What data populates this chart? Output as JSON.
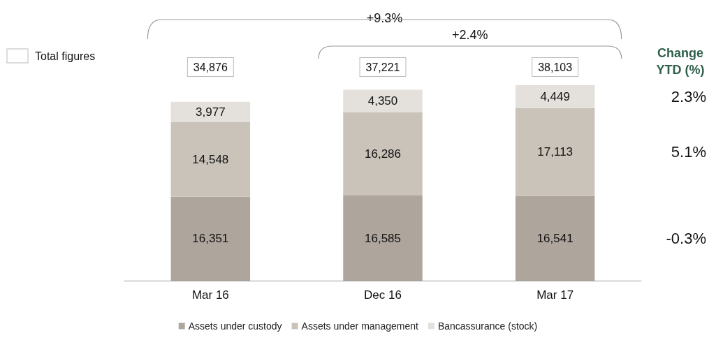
{
  "chart_data": {
    "type": "bar",
    "stacked": true,
    "categories": [
      "Mar 16",
      "Dec 16",
      "Mar 17"
    ],
    "series": [
      {
        "name": "Assets under custody",
        "color": "#aea59c",
        "values": [
          16351,
          16585,
          16541
        ],
        "value_labels": [
          "16,351",
          "16,585",
          "16,541"
        ]
      },
      {
        "name": "Assets under management",
        "color": "#c9c3b9",
        "values": [
          14548,
          16286,
          17113
        ],
        "value_labels": [
          "14,548",
          "16,286",
          "17,113"
        ]
      },
      {
        "name": "Bancassurance (stock)",
        "color": "#e4e1dc",
        "values": [
          3977,
          4350,
          4449
        ],
        "value_labels": [
          "3,977",
          "4,350",
          "4,449"
        ]
      }
    ],
    "totals": [
      "34,876",
      "37,221",
      "38,103"
    ],
    "legend": "bottom",
    "annotations": [
      "Total figures",
      "+9.3%",
      "+2.4%",
      "Change YTD (%)",
      "2.3%",
      "5.1%",
      "-0.3%"
    ]
  }
}
